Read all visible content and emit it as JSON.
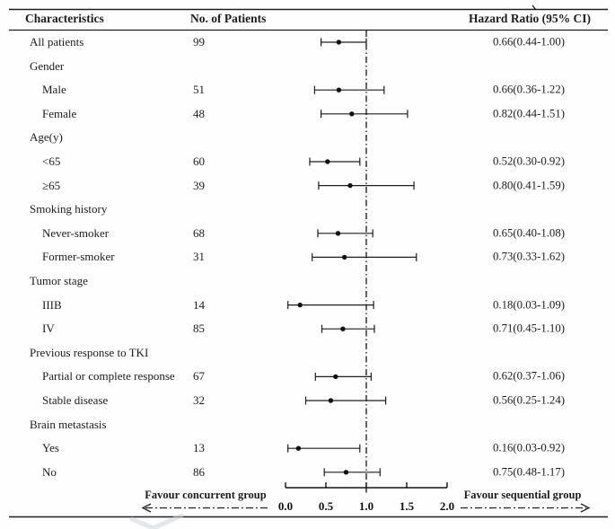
{
  "header": {
    "characteristics": "Characteristics",
    "patients": "No. of Patients",
    "hazard_ratio": "Hazard Ratio (95% CI)"
  },
  "footer": {
    "favour_left": "Favour concurrent group",
    "favour_right": "Favour sequential group"
  },
  "chart_data": {
    "type": "forest",
    "title": "Hazard Ratio (95% CI)",
    "xlim": [
      0.0,
      2.0
    ],
    "x_ticks": [
      "0.0",
      "0.5",
      "1.0",
      "1.5",
      "2.0"
    ],
    "reference_line": 1.0,
    "legend_left": "Favour concurrent group",
    "legend_right": "Favour sequential group",
    "colors": {
      "line": "#1d1d1d",
      "text": "#1c1c1c"
    },
    "rows": [
      {
        "label": "All patients",
        "indent": 0,
        "n": "99",
        "hr": 0.66,
        "ci_low": 0.44,
        "ci_high": 1.0,
        "hr_text": "0.66(0.44-1.00)"
      },
      {
        "label": "Gender",
        "indent": 0,
        "header": true
      },
      {
        "label": "Male",
        "indent": 1,
        "n": "51",
        "hr": 0.66,
        "ci_low": 0.36,
        "ci_high": 1.22,
        "hr_text": "0.66(0.36-1.22)"
      },
      {
        "label": "Female",
        "indent": 1,
        "n": "48",
        "hr": 0.82,
        "ci_low": 0.44,
        "ci_high": 1.51,
        "hr_text": "0.82(0.44-1.51)"
      },
      {
        "label": "Age(y)",
        "indent": 0,
        "header": true
      },
      {
        "label": "<65",
        "indent": 1,
        "n": "60",
        "hr": 0.52,
        "ci_low": 0.3,
        "ci_high": 0.92,
        "hr_text": "0.52(0.30-0.92)"
      },
      {
        "label": "≥65",
        "indent": 1,
        "n": "39",
        "hr": 0.8,
        "ci_low": 0.41,
        "ci_high": 1.59,
        "hr_text": "0.80(0.41-1.59)"
      },
      {
        "label": "Smoking history",
        "indent": 0,
        "header": true
      },
      {
        "label": "Never-smoker",
        "indent": 1,
        "n": "68",
        "hr": 0.65,
        "ci_low": 0.4,
        "ci_high": 1.08,
        "hr_text": "0.65(0.40-1.08)"
      },
      {
        "label": "Former-smoker",
        "indent": 1,
        "n": "31",
        "hr": 0.73,
        "ci_low": 0.33,
        "ci_high": 1.62,
        "hr_text": "0.73(0.33-1.62)"
      },
      {
        "label": "Tumor stage",
        "indent": 0,
        "header": true
      },
      {
        "label": "IIIB",
        "indent": 1,
        "n": "14",
        "hr": 0.18,
        "ci_low": 0.03,
        "ci_high": 1.09,
        "hr_text": "0.18(0.03-1.09)"
      },
      {
        "label": "IV",
        "indent": 1,
        "n": "85",
        "hr": 0.71,
        "ci_low": 0.45,
        "ci_high": 1.1,
        "hr_text": "0.71(0.45-1.10)"
      },
      {
        "label": "Previous response to TKI",
        "indent": 0,
        "header": true
      },
      {
        "label": "Partial or complete response",
        "indent": 1,
        "n": "67",
        "hr": 0.62,
        "ci_low": 0.37,
        "ci_high": 1.06,
        "hr_text": "0.62(0.37-1.06)"
      },
      {
        "label": "Stable disease",
        "indent": 1,
        "n": "32",
        "hr": 0.56,
        "ci_low": 0.25,
        "ci_high": 1.24,
        "hr_text": "0.56(0.25-1.24)"
      },
      {
        "label": "Brain metastasis",
        "indent": 0,
        "header": true
      },
      {
        "label": "Yes",
        "indent": 1,
        "n": "13",
        "hr": 0.16,
        "ci_low": 0.03,
        "ci_high": 0.92,
        "hr_text": "0.16(0.03-0.92)"
      },
      {
        "label": "No",
        "indent": 1,
        "n": "86",
        "hr": 0.75,
        "ci_low": 0.48,
        "ci_high": 1.17,
        "hr_text": "0.75(0.48-1.17)"
      }
    ]
  }
}
